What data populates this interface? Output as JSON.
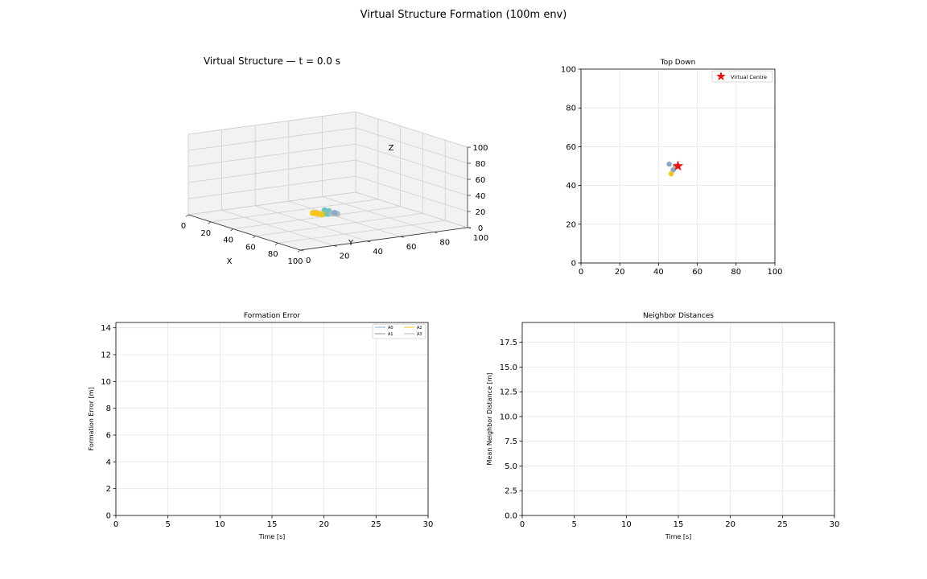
{
  "figure": {
    "suptitle": "Virtual Structure Formation (100m env)"
  },
  "colors": {
    "A0": "#88a8c8",
    "A1": "#909090",
    "A2": "#f5c518",
    "A3": "#b8b8b8",
    "cluster_teal": "#6fc4b8",
    "virtual_centre": "#ee1111",
    "grid": "#e6e6e6",
    "pane": "#f2f2f2"
  },
  "chart_data": [
    {
      "type": "scatter",
      "projection": "3d",
      "title": "Virtual Structure — t = 0.0 s",
      "xlabel": "X",
      "ylabel": "Y",
      "zlabel": "Z",
      "xlim": [
        0,
        100
      ],
      "ylim": [
        0,
        100
      ],
      "zlim": [
        0,
        100
      ],
      "xticks": [
        "0",
        "20",
        "40",
        "60",
        "80",
        "100"
      ],
      "yticks": [
        "0",
        "20",
        "40",
        "60",
        "80",
        "100"
      ],
      "zticks": [
        "0",
        "20",
        "40",
        "60",
        "80",
        "100"
      ],
      "grid": true,
      "points": [
        {
          "x": 46,
          "y": 51,
          "z": 11,
          "color": "#6fc4b8"
        },
        {
          "x": 47,
          "y": 50,
          "z": 12,
          "color": "#6fc4b8"
        },
        {
          "x": 48,
          "y": 52,
          "z": 11,
          "color": "#6fc4b8"
        },
        {
          "x": 49,
          "y": 50,
          "z": 10,
          "color": "#6fc4b8"
        },
        {
          "x": 50,
          "y": 50,
          "z": 9,
          "color": "#6fc4b8"
        },
        {
          "x": 48,
          "y": 49,
          "z": 9,
          "color": "#6fc4b8"
        },
        {
          "x": 44,
          "y": 45,
          "z": 9,
          "color": "#f5c518"
        },
        {
          "x": 45,
          "y": 46,
          "z": 9,
          "color": "#f5c518"
        },
        {
          "x": 47,
          "y": 46,
          "z": 9,
          "color": "#f5c518"
        },
        {
          "x": 49,
          "y": 47,
          "z": 9,
          "color": "#f5c518"
        },
        {
          "x": 52,
          "y": 51,
          "z": 10,
          "color": "#b8b8b8"
        },
        {
          "x": 54,
          "y": 53,
          "z": 10,
          "color": "#b8b8b8"
        },
        {
          "x": 53,
          "y": 52,
          "z": 11,
          "color": "#88a8c8"
        }
      ]
    },
    {
      "type": "scatter",
      "title": "Top Down",
      "xlabel": "",
      "ylabel": "",
      "xlim": [
        0,
        100
      ],
      "ylim": [
        0,
        100
      ],
      "xticks": [
        "0",
        "20",
        "40",
        "60",
        "80",
        "100"
      ],
      "yticks": [
        "0",
        "20",
        "40",
        "60",
        "80",
        "100"
      ],
      "grid": true,
      "legend": {
        "position": "top-right",
        "entries": [
          "Virtual Centre"
        ]
      },
      "series": [
        {
          "name": "Virtual Centre",
          "marker": "star",
          "color": "#ee1111",
          "x": [
            50
          ],
          "y": [
            50
          ]
        }
      ],
      "points": [
        {
          "x": 45.5,
          "y": 51,
          "color": "#88a8c8"
        },
        {
          "x": 47.5,
          "y": 48,
          "color": "#88a8c8"
        },
        {
          "x": 46.5,
          "y": 46,
          "color": "#f5c518"
        },
        {
          "x": 48.5,
          "y": 50,
          "color": "#b8b8b8"
        }
      ]
    },
    {
      "type": "line",
      "title": "Formation Error",
      "xlabel": "Time [s]",
      "ylabel": "Formation Error [m]",
      "xlim": [
        0,
        30
      ],
      "ylim": [
        0,
        14.4
      ],
      "xticks": [
        "0",
        "5",
        "10",
        "15",
        "20",
        "25",
        "30"
      ],
      "yticks": [
        "0",
        "2",
        "4",
        "6",
        "8",
        "10",
        "12",
        "14"
      ],
      "grid": true,
      "legend": {
        "position": "top-right",
        "columns": 2
      },
      "series": [
        {
          "name": "A0",
          "color": "#88a8c8",
          "x": [],
          "values": []
        },
        {
          "name": "A1",
          "color": "#909090",
          "x": [],
          "values": []
        },
        {
          "name": "A2",
          "color": "#f5c518",
          "x": [],
          "values": []
        },
        {
          "name": "A3",
          "color": "#b8b8b8",
          "x": [],
          "values": []
        }
      ]
    },
    {
      "type": "line",
      "title": "Neighbor Distances",
      "xlabel": "Time [s]",
      "ylabel": "Mean Neighbor Distance [m]",
      "xlim": [
        0,
        30
      ],
      "ylim": [
        0,
        19.5
      ],
      "xticks": [
        "0",
        "5",
        "10",
        "15",
        "20",
        "25",
        "30"
      ],
      "yticks": [
        "0.0",
        "2.5",
        "5.0",
        "7.5",
        "10.0",
        "12.5",
        "15.0",
        "17.5"
      ],
      "grid": true,
      "series": []
    }
  ]
}
